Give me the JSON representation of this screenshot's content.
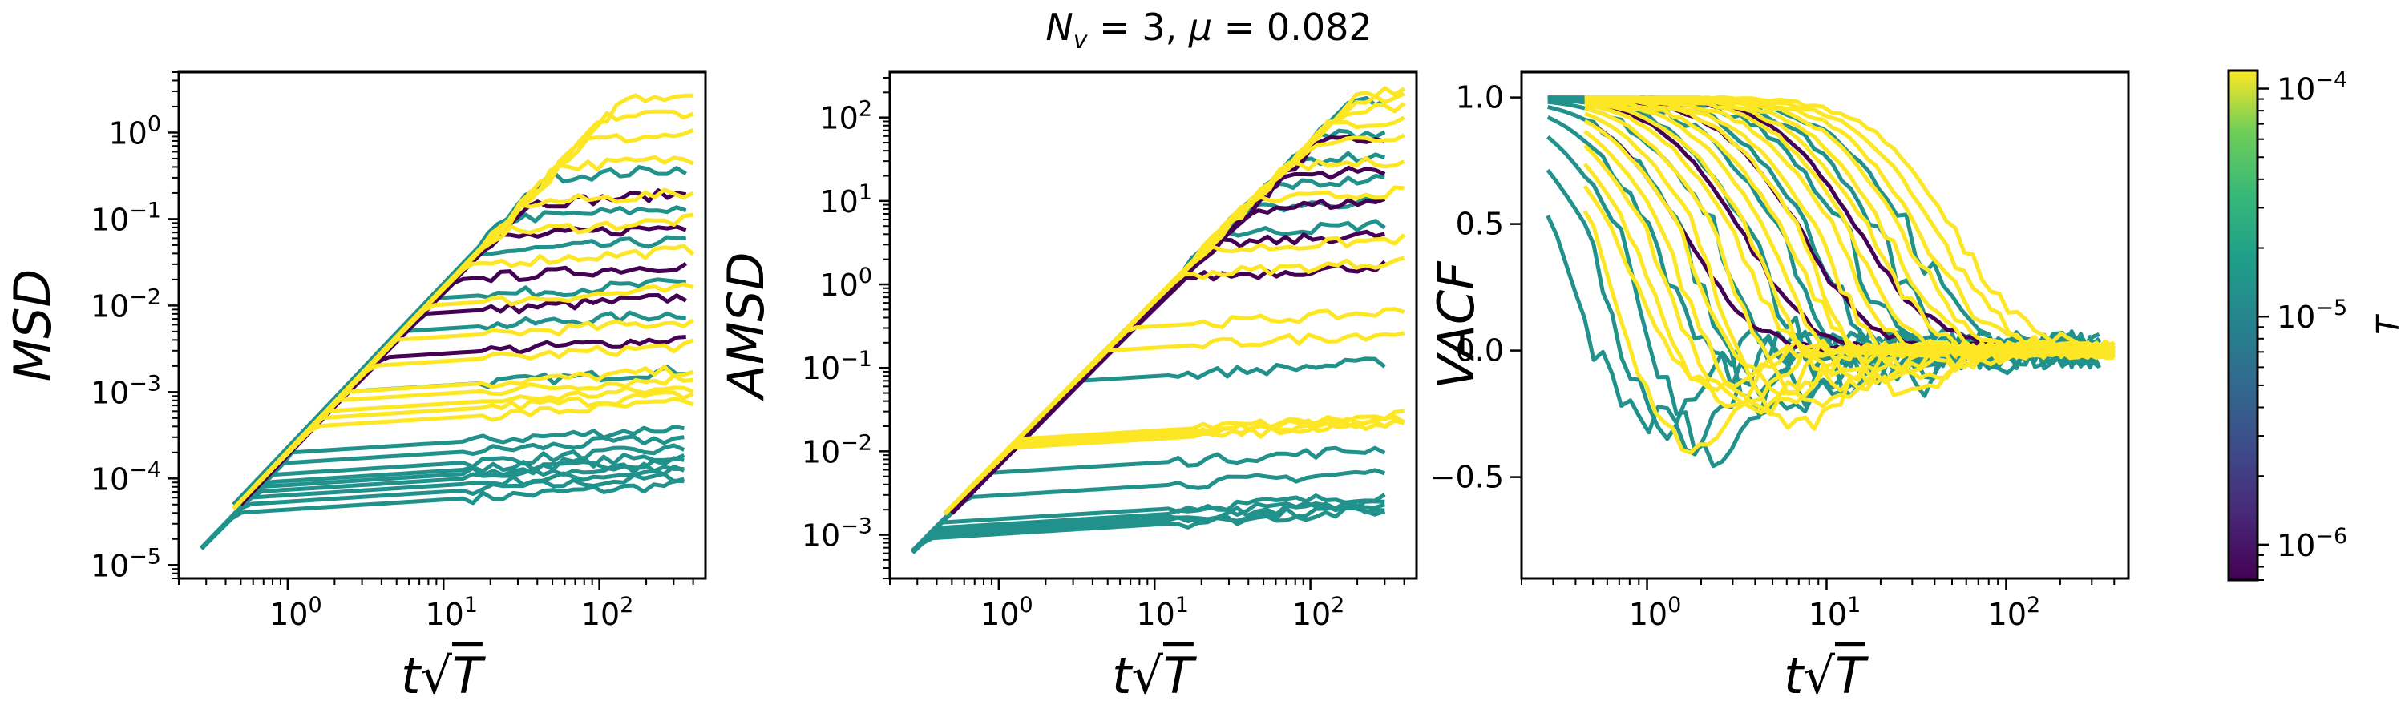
{
  "figure": {
    "suptitle": "N_v = 3, μ = 0.082",
    "suptitle_parts": {
      "N": "N",
      "v": "v",
      "rest": " = 3, ",
      "mu": "μ",
      "val": " = 0.082"
    }
  },
  "colorbar": {
    "label": "T",
    "scale": "log",
    "range": [
      7e-07,
      0.00012
    ],
    "ticks": [
      {
        "value": 0.0001,
        "base": "10",
        "exp": "−4"
      },
      {
        "value": 1e-05,
        "base": "10",
        "exp": "−5"
      },
      {
        "value": 1e-06,
        "base": "10",
        "exp": "−6"
      }
    ],
    "colormap": "viridis"
  },
  "chart_data": [
    {
      "type": "line",
      "ylabel": "MSD",
      "xlabel_parts": {
        "t": "t",
        "radical": "√",
        "T": "T"
      },
      "xscale": "log",
      "yscale": "log",
      "xlim": [
        0.2,
        480
      ],
      "ylim": [
        7e-06,
        5
      ],
      "xticks": [
        {
          "value": 1,
          "base": "10",
          "exp": "0"
        },
        {
          "value": 10,
          "base": "10",
          "exp": "1"
        },
        {
          "value": 100,
          "base": "10",
          "exp": "2"
        }
      ],
      "yticks": [
        {
          "value": 1e-05,
          "base": "10",
          "exp": "−5"
        },
        {
          "value": 0.0001,
          "base": "10",
          "exp": "−4"
        },
        {
          "value": 0.001,
          "base": "10",
          "exp": "−3"
        },
        {
          "value": 0.01,
          "base": "10",
          "exp": "−2"
        },
        {
          "value": 0.1,
          "base": "10",
          "exp": "−1"
        },
        {
          "value": 1,
          "base": "10",
          "exp": "0"
        }
      ],
      "series_groups": [
        {
          "color": "#21918c",
          "x_start": 0.28,
          "x_end": 350,
          "y_start": 1.6e-05,
          "plateaus": [
            4e-05,
            5e-05,
            6e-05,
            7e-05,
            8e-05,
            9e-05,
            0.00011,
            0.00015,
            0.0002
          ]
        },
        {
          "color": "#21918c",
          "x_start": 0.45,
          "x_end": 360,
          "y_start": 5e-05,
          "plateaus": [
            0.001,
            0.005,
            0.012,
            0.04,
            0.1,
            0.3
          ]
        },
        {
          "color": "#440154",
          "x_start": 0.5,
          "x_end": 360,
          "y_start": 5e-05,
          "plateaus": [
            0.0025,
            0.008,
            0.02,
            0.06,
            0.15
          ]
        },
        {
          "color": "#fde725",
          "x_start": 0.45,
          "x_end": 400,
          "y_start": 4.5e-05,
          "plateaus": [
            0.0004,
            0.0005,
            0.0006,
            0.0008,
            0.001,
            0.002,
            0.004,
            0.01,
            0.03,
            0.07,
            0.15,
            0.4,
            0.8,
            1.5,
            2.5
          ]
        }
      ]
    },
    {
      "type": "line",
      "ylabel": "AMSD",
      "xlabel_parts": {
        "t": "t",
        "radical": "√",
        "T": "T"
      },
      "xscale": "log",
      "yscale": "log",
      "xlim": [
        0.2,
        480
      ],
      "ylim": [
        0.0003,
        350
      ],
      "xticks": [
        {
          "value": 1,
          "base": "10",
          "exp": "0"
        },
        {
          "value": 10,
          "base": "10",
          "exp": "1"
        },
        {
          "value": 100,
          "base": "10",
          "exp": "2"
        }
      ],
      "yticks": [
        {
          "value": 0.001,
          "base": "10",
          "exp": "−3"
        },
        {
          "value": 0.01,
          "base": "10",
          "exp": "−2"
        },
        {
          "value": 0.1,
          "base": "10",
          "exp": "−1"
        },
        {
          "value": 1,
          "base": "10",
          "exp": "0"
        },
        {
          "value": 10,
          "base": "10",
          "exp": "1"
        },
        {
          "value": 100,
          "base": "10",
          "exp": "2"
        }
      ],
      "series_groups": [
        {
          "color": "#21918c",
          "x_start": 0.28,
          "x_end": 300,
          "y_start": 0.00065,
          "plateaus": [
            0.0009,
            0.001,
            0.0011,
            0.0012,
            0.0014,
            0.0028,
            0.0055,
            0.07
          ]
        },
        {
          "color": "#21918c",
          "x_start": 0.45,
          "x_end": 300,
          "y_start": 0.0018,
          "plateaus": [
            4,
            8,
            15,
            30,
            60,
            150
          ]
        },
        {
          "color": "#440154",
          "x_start": 0.5,
          "x_end": 300,
          "y_start": 0.0018,
          "plateaus": [
            1.2,
            3,
            8,
            20,
            50
          ]
        },
        {
          "color": "#fde725",
          "x_start": 0.45,
          "x_end": 400,
          "y_start": 0.0018,
          "plateaus": [
            0.011,
            0.012,
            0.013,
            0.014,
            0.16,
            0.3,
            1.3,
            2.5,
            10,
            25,
            50,
            80,
            120,
            160,
            200
          ]
        }
      ]
    },
    {
      "type": "line",
      "ylabel": "VACF",
      "xlabel_parts": {
        "t": "t",
        "radical": "√",
        "T": "T"
      },
      "xscale": "log",
      "yscale": "linear",
      "xlim": [
        0.2,
        480
      ],
      "ylim": [
        -0.9,
        1.1
      ],
      "xticks": [
        {
          "value": 1,
          "base": "10",
          "exp": "0"
        },
        {
          "value": 10,
          "base": "10",
          "exp": "1"
        },
        {
          "value": 100,
          "base": "10",
          "exp": "2"
        }
      ],
      "yticks": [
        {
          "value": 1.0,
          "label": "1.0"
        },
        {
          "value": 0.5,
          "label": "0.5"
        },
        {
          "value": 0.0,
          "label": "0.0"
        },
        {
          "value": -0.5,
          "label": "−0.5"
        }
      ],
      "series_groups": [
        {
          "color": "#21918c",
          "x_start": 0.28,
          "x_end": 330,
          "decay_from": 0.3,
          "decay_to": 40,
          "dip_min": -0.8,
          "noise": 0.12
        },
        {
          "color": "#440154",
          "x_start": 0.5,
          "x_end": 330,
          "decay_from": 1.5,
          "decay_to": 30,
          "dip_min": -0.1,
          "noise": 0.03
        },
        {
          "color": "#fde725",
          "x_start": 0.45,
          "x_end": 400,
          "decay_from": 0.5,
          "decay_to": 60,
          "dip_min": -0.67,
          "noise": 0.05
        }
      ]
    }
  ]
}
